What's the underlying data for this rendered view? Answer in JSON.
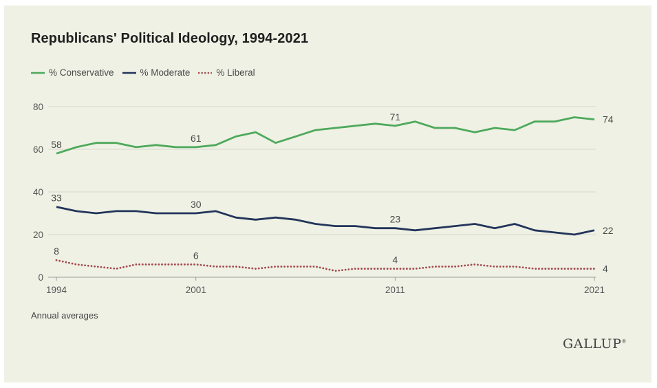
{
  "chart_data": {
    "type": "line",
    "title": "Republicans' Political Ideology, 1994-2021",
    "note": "Annual averages",
    "brand": "GALLUP",
    "x": [
      1994,
      1995,
      1996,
      1997,
      1998,
      1999,
      2000,
      2001,
      2002,
      2003,
      2004,
      2005,
      2006,
      2007,
      2008,
      2009,
      2010,
      2011,
      2012,
      2013,
      2014,
      2015,
      2016,
      2017,
      2018,
      2019,
      2020,
      2021
    ],
    "x_ticks": [
      1994,
      2001,
      2011,
      2021
    ],
    "y_ticks": [
      0,
      20,
      40,
      60,
      80
    ],
    "ylim": [
      0,
      80
    ],
    "xlim": [
      1994,
      2021
    ],
    "grid": "horizontal",
    "legend_position": "top-left",
    "series": [
      {
        "name": "% Conservative",
        "color": "#4ea95c",
        "style": "solid",
        "values": [
          58,
          61,
          63,
          63,
          61,
          62,
          61,
          61,
          62,
          66,
          68,
          63,
          66,
          69,
          70,
          71,
          72,
          71,
          73,
          70,
          70,
          68,
          70,
          69,
          73,
          73,
          75,
          74
        ],
        "labels": [
          {
            "x": 1994,
            "text": "58"
          },
          {
            "x": 2001,
            "text": "61"
          },
          {
            "x": 2011,
            "text": "71"
          },
          {
            "x": 2021,
            "text": "74"
          }
        ]
      },
      {
        "name": "% Moderate",
        "color": "#22345a",
        "style": "solid",
        "values": [
          33,
          31,
          30,
          31,
          31,
          30,
          30,
          30,
          31,
          28,
          27,
          28,
          27,
          25,
          24,
          24,
          23,
          23,
          22,
          23,
          24,
          25,
          23,
          25,
          22,
          21,
          20,
          22
        ],
        "labels": [
          {
            "x": 1994,
            "text": "33"
          },
          {
            "x": 2001,
            "text": "30"
          },
          {
            "x": 2011,
            "text": "23"
          },
          {
            "x": 2021,
            "text": "22"
          }
        ]
      },
      {
        "name": "% Liberal",
        "color": "#a5484c",
        "style": "dotted",
        "values": [
          8,
          6,
          5,
          4,
          6,
          6,
          6,
          6,
          5,
          5,
          4,
          5,
          5,
          5,
          3,
          4,
          4,
          4,
          4,
          5,
          5,
          6,
          5,
          5,
          4,
          4,
          4,
          4
        ],
        "labels": [
          {
            "x": 1994,
            "text": "8"
          },
          {
            "x": 2001,
            "text": "6"
          },
          {
            "x": 2011,
            "text": "4"
          },
          {
            "x": 2021,
            "text": "4"
          }
        ]
      }
    ]
  }
}
